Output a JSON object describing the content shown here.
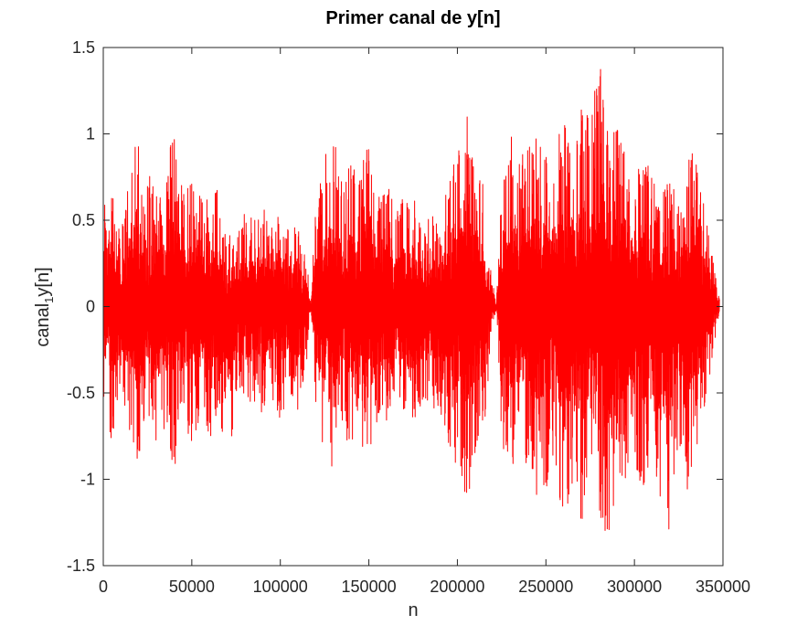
{
  "chart_data": {
    "type": "line",
    "title": "Primer canal de y[n]",
    "xlabel": "n",
    "ylabel_parts": {
      "main": "canal",
      "sub": "1",
      "rest": "y[n]"
    },
    "xlim": [
      0,
      350000
    ],
    "ylim": [
      -1.5,
      1.5
    ],
    "xticks": [
      0,
      50000,
      100000,
      150000,
      200000,
      250000,
      300000,
      350000
    ],
    "xtick_labels": [
      "0",
      "50000",
      "100000",
      "150000",
      "200000",
      "250000",
      "300000",
      "350000"
    ],
    "yticks": [
      -1.5,
      -1,
      -0.5,
      0,
      0.5,
      1,
      1.5
    ],
    "ytick_labels": [
      "-1.5",
      "-1",
      "-0.5",
      "0",
      "0.5",
      "1",
      "1.5"
    ],
    "grid": false,
    "series": [
      {
        "color": "#ff0000",
        "n_end": 348000,
        "envelope": {
          "n": [
            0,
            5000,
            10000,
            15000,
            20000,
            25000,
            30000,
            35000,
            40000,
            45000,
            50000,
            55000,
            60000,
            65000,
            70000,
            75000,
            80000,
            85000,
            90000,
            95000,
            100000,
            105000,
            110000,
            115000,
            117000,
            120000,
            125000,
            130000,
            135000,
            140000,
            145000,
            150000,
            155000,
            160000,
            165000,
            170000,
            175000,
            180000,
            185000,
            190000,
            195000,
            200000,
            205000,
            210000,
            215000,
            219000,
            222000,
            225000,
            230000,
            235000,
            240000,
            245000,
            250000,
            255000,
            260000,
            265000,
            270000,
            275000,
            280000,
            285000,
            290000,
            295000,
            300000,
            305000,
            310000,
            315000,
            320000,
            325000,
            330000,
            335000,
            340000,
            345000,
            348000
          ],
          "max": [
            0.72,
            0.78,
            0.45,
            0.82,
            1.02,
            0.75,
            0.85,
            0.7,
            1.1,
            0.65,
            0.75,
            0.8,
            0.66,
            0.68,
            0.45,
            0.55,
            0.55,
            0.52,
            0.62,
            0.48,
            0.58,
            0.52,
            0.46,
            0.3,
            0.02,
            0.58,
            0.88,
            1.0,
            0.72,
            0.88,
            0.78,
            1.08,
            0.62,
            0.78,
            0.52,
            0.68,
            0.72,
            0.42,
            0.6,
            0.45,
            0.75,
            0.92,
            1.18,
            0.85,
            0.72,
            0.2,
            0.02,
            0.7,
            1.08,
            0.88,
            0.92,
            1.08,
            0.98,
            0.92,
            1.15,
            0.88,
            1.25,
            1.2,
            1.46,
            1.12,
            1.1,
            1.02,
            0.72,
            0.9,
            0.75,
            0.6,
            0.82,
            0.58,
            0.92,
            0.86,
            0.6,
            0.22,
            0.08
          ],
          "min": [
            -0.6,
            -0.82,
            -0.5,
            -0.72,
            -0.95,
            -0.68,
            -0.85,
            -0.78,
            -0.98,
            -0.65,
            -0.82,
            -0.62,
            -0.78,
            -0.6,
            -1.1,
            -0.55,
            -0.6,
            -0.55,
            -0.62,
            -0.52,
            -0.68,
            -0.52,
            -0.6,
            -0.32,
            -0.02,
            -0.62,
            -0.92,
            -0.95,
            -0.7,
            -0.88,
            -0.72,
            -1.12,
            -0.62,
            -0.75,
            -0.52,
            -0.7,
            -0.72,
            -0.62,
            -0.62,
            -0.6,
            -0.8,
            -0.95,
            -1.15,
            -0.9,
            -0.75,
            -0.2,
            -0.02,
            -0.78,
            -1.02,
            -0.85,
            -0.95,
            -1.1,
            -1.05,
            -0.92,
            -1.25,
            -1.02,
            -1.3,
            -1.0,
            -1.18,
            -1.36,
            -1.1,
            -1.12,
            -0.92,
            -1.15,
            -0.88,
            -1.32,
            -1.3,
            -0.88,
            -1.12,
            -0.92,
            -0.58,
            -0.22,
            -0.08
          ]
        }
      }
    ]
  }
}
